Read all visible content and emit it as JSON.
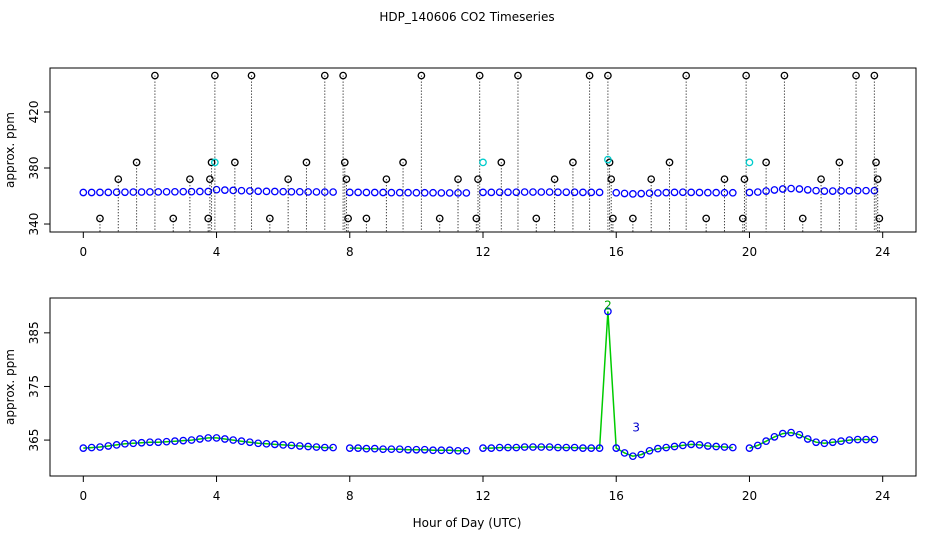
{
  "chart_data": [
    {
      "type": "scatter",
      "title": "HDP_140606  CO2 Timeseries",
      "ylabel": "approx. ppm",
      "xlim": [
        -1,
        25
      ],
      "ylim": [
        334.3,
        451.4
      ],
      "xticks": [
        0,
        4,
        8,
        12,
        16,
        20,
        24
      ],
      "yticks": [
        340,
        380,
        420
      ],
      "x": [
        0,
        0.25,
        0.5,
        0.75,
        1,
        1.25,
        1.5,
        1.75,
        2,
        2.25,
        2.5,
        2.75,
        3,
        3.25,
        3.5,
        3.75,
        4,
        4.25,
        4.5,
        4.75,
        5,
        5.25,
        5.5,
        5.75,
        6,
        6.25,
        6.5,
        6.75,
        7,
        7.25,
        7.5,
        7.75,
        8,
        8.25,
        8.5,
        8.75,
        9,
        9.25,
        9.5,
        9.75,
        10,
        10.25,
        10.5,
        10.75,
        11,
        11.25,
        11.5,
        11.75,
        12,
        12.25,
        12.5,
        12.75,
        13,
        13.25,
        13.5,
        13.75,
        14,
        14.25,
        14.5,
        14.75,
        15,
        15.25,
        15.5,
        15.75,
        16,
        16.25,
        16.5,
        16.75,
        17,
        17.25,
        17.5,
        17.75,
        18,
        18.25,
        18.5,
        18.75,
        19,
        19.25,
        19.5,
        19.75,
        20,
        20.25,
        20.5,
        20.75,
        21,
        21.25,
        21.5,
        21.75,
        22,
        22.25,
        22.5,
        22.75,
        23,
        23.25,
        23.5,
        23.75
      ],
      "series": [
        {
          "color": "#0000ff",
          "values": [
            362.5,
            362.5,
            362.6,
            362.6,
            362.7,
            362.7,
            362.8,
            362.8,
            362.9,
            362.9,
            363,
            363,
            363.1,
            363.1,
            363.2,
            363.2,
            364.5,
            364.2,
            364,
            363.8,
            363.6,
            363.4,
            363.3,
            363.2,
            363.1,
            363,
            363,
            362.9,
            362.9,
            362.8,
            362.8,
            null,
            362.6,
            362.6,
            362.5,
            362.5,
            362.5,
            362.4,
            362.4,
            362.4,
            362.3,
            362.3,
            362.3,
            362.2,
            362.2,
            362.2,
            362.2,
            null,
            362.6,
            362.6,
            362.7,
            362.7,
            362.7,
            362.8,
            362.8,
            362.8,
            362.8,
            362.7,
            362.7,
            362.7,
            362.6,
            362.6,
            362.6,
            null,
            362.3,
            361.8,
            361.5,
            361.7,
            362,
            362.2,
            362.4,
            362.6,
            362.7,
            362.6,
            362.5,
            362.4,
            362.4,
            362.3,
            362.3,
            null,
            362.5,
            362.8,
            363.5,
            364.3,
            365,
            365.3,
            365,
            364.4,
            363.8,
            363.5,
            363.5,
            363.6,
            363.7,
            363.8,
            363.8,
            363.8
          ]
        },
        {
          "color": "#000000",
          "drop": true,
          "x": [
            0.5,
            1.05,
            1.6,
            2.15,
            2.7,
            3.2,
            3.75,
            3.8,
            3.85,
            3.95,
            4.55,
            5.05,
            5.6,
            6.15,
            6.7,
            7.25,
            7.8,
            7.85,
            7.9,
            7.95,
            8.5,
            9.1,
            9.6,
            10.15,
            10.7,
            11.25,
            11.8,
            11.85,
            11.9,
            12.55,
            13.05,
            13.6,
            14.15,
            14.7,
            15.2,
            15.75,
            15.8,
            15.85,
            15.9,
            16.5,
            17.05,
            17.6,
            18.1,
            18.7,
            19.25,
            19.8,
            19.85,
            19.9,
            20.5,
            21.05,
            21.6,
            22.15,
            22.7,
            23.2,
            23.75,
            23.8,
            23.85,
            23.9
          ],
          "values": [
            344,
            372,
            384,
            446,
            344,
            372,
            344,
            372,
            384,
            446,
            384,
            446,
            344,
            372,
            384,
            446,
            446,
            384,
            372,
            344,
            344,
            372,
            384,
            446,
            344,
            372,
            344,
            372,
            446,
            384,
            446,
            344,
            372,
            384,
            446,
            446,
            384,
            372,
            344,
            344,
            372,
            384,
            446,
            344,
            372,
            344,
            372,
            446,
            384,
            446,
            344,
            372,
            384,
            446,
            446,
            384,
            372,
            344
          ]
        },
        {
          "color": "#00cccc",
          "x": [
            3.95,
            12.0,
            15.75,
            20.0
          ],
          "values": [
            384,
            384,
            386,
            384
          ]
        }
      ]
    },
    {
      "type": "scatter",
      "ylabel": "approx. ppm",
      "xlabel": "Hour of Day (UTC)",
      "xlim": [
        -1,
        25
      ],
      "ylim": [
        358.3,
        391.5
      ],
      "xticks": [
        0,
        4,
        8,
        12,
        16,
        20,
        24
      ],
      "yticks": [
        365,
        375,
        385
      ],
      "x": [
        0,
        0.25,
        0.5,
        0.75,
        1,
        1.25,
        1.5,
        1.75,
        2,
        2.25,
        2.5,
        2.75,
        3,
        3.25,
        3.5,
        3.75,
        4,
        4.25,
        4.5,
        4.75,
        5,
        5.25,
        5.5,
        5.75,
        6,
        6.25,
        6.5,
        6.75,
        7,
        7.25,
        7.5,
        7.75,
        8,
        8.25,
        8.5,
        8.75,
        9,
        9.25,
        9.5,
        9.75,
        10,
        10.25,
        10.5,
        10.75,
        11,
        11.25,
        11.5,
        11.75,
        12,
        12.25,
        12.5,
        12.75,
        13,
        13.25,
        13.5,
        13.75,
        14,
        14.25,
        14.5,
        14.75,
        15,
        15.25,
        15.5,
        15.75,
        16,
        16.25,
        16.5,
        16.75,
        17,
        17.25,
        17.5,
        17.75,
        18,
        18.25,
        18.5,
        18.75,
        19,
        19.25,
        19.5,
        19.75,
        20,
        20.25,
        20.5,
        20.75,
        21,
        21.25,
        21.5,
        21.75,
        22,
        22.25,
        22.5,
        22.75,
        23,
        23.25,
        23.5,
        23.75
      ],
      "series": [
        {
          "color": "#0000ff",
          "line_color": "#00cc00",
          "values": [
            363.5,
            363.6,
            363.7,
            363.9,
            364.1,
            364.3,
            364.4,
            364.5,
            364.6,
            364.6,
            364.7,
            364.8,
            364.9,
            365,
            365.2,
            365.4,
            365.4,
            365.2,
            365,
            364.8,
            364.6,
            364.4,
            364.3,
            364.2,
            364.1,
            364,
            363.9,
            363.8,
            363.7,
            363.6,
            363.6,
            null,
            363.5,
            363.5,
            363.4,
            363.4,
            363.3,
            363.3,
            363.3,
            363.2,
            363.2,
            363.2,
            363.1,
            363.1,
            363.1,
            363,
            363,
            null,
            363.5,
            363.5,
            363.6,
            363.6,
            363.6,
            363.7,
            363.7,
            363.7,
            363.7,
            363.6,
            363.6,
            363.6,
            363.5,
            363.5,
            363.5,
            389,
            363.5,
            362.6,
            362,
            362.3,
            363,
            363.4,
            363.6,
            363.8,
            364,
            364.2,
            364.1,
            363.9,
            363.8,
            363.7,
            363.6,
            null,
            363.5,
            364,
            364.8,
            365.6,
            366.2,
            366.4,
            366,
            365.2,
            364.6,
            364.4,
            364.6,
            364.8,
            365,
            365.1,
            365.1,
            365.1
          ]
        }
      ],
      "annotations": [
        {
          "text": "2",
          "x": 15.75,
          "y": 389,
          "color": "#00aa00"
        },
        {
          "text": "3",
          "x": 16.6,
          "y": 366.2,
          "color": "#0000cc"
        }
      ]
    }
  ]
}
